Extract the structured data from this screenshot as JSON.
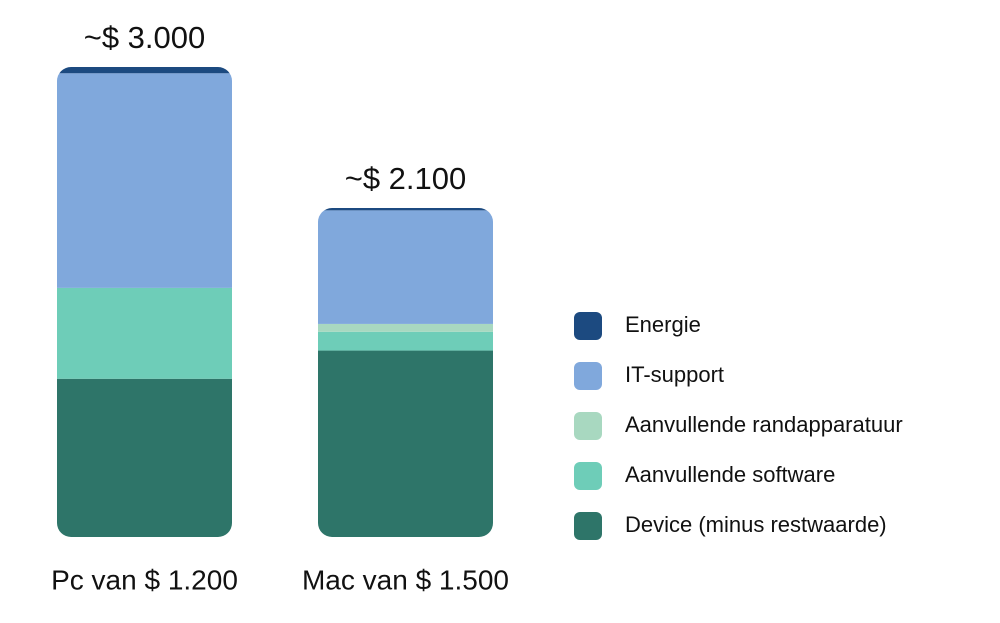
{
  "chart_data": {
    "type": "stacked_bar",
    "categories": [
      "Pc van $ 1.200",
      "Mac van $ 1.500"
    ],
    "totals": [
      3000,
      2100
    ],
    "total_labels": [
      "~$ 3.000",
      "~$ 2.100"
    ],
    "series": [
      {
        "name": "Device (minus restwaarde)",
        "color": "#2e7569",
        "values": [
          1010,
          1190
        ]
      },
      {
        "name": "Aanvullende software",
        "color": "#6ecdb8",
        "values": [
          580,
          120
        ]
      },
      {
        "name": "Aanvullende randapparatuur",
        "color": "#a8d8c0",
        "values": [
          0,
          50
        ]
      },
      {
        "name": "IT-support",
        "color": "#80a8dc",
        "values": [
          1370,
          725
        ]
      },
      {
        "name": "Energie",
        "color": "#1c4a80",
        "values": [
          40,
          15
        ]
      }
    ]
  }
}
